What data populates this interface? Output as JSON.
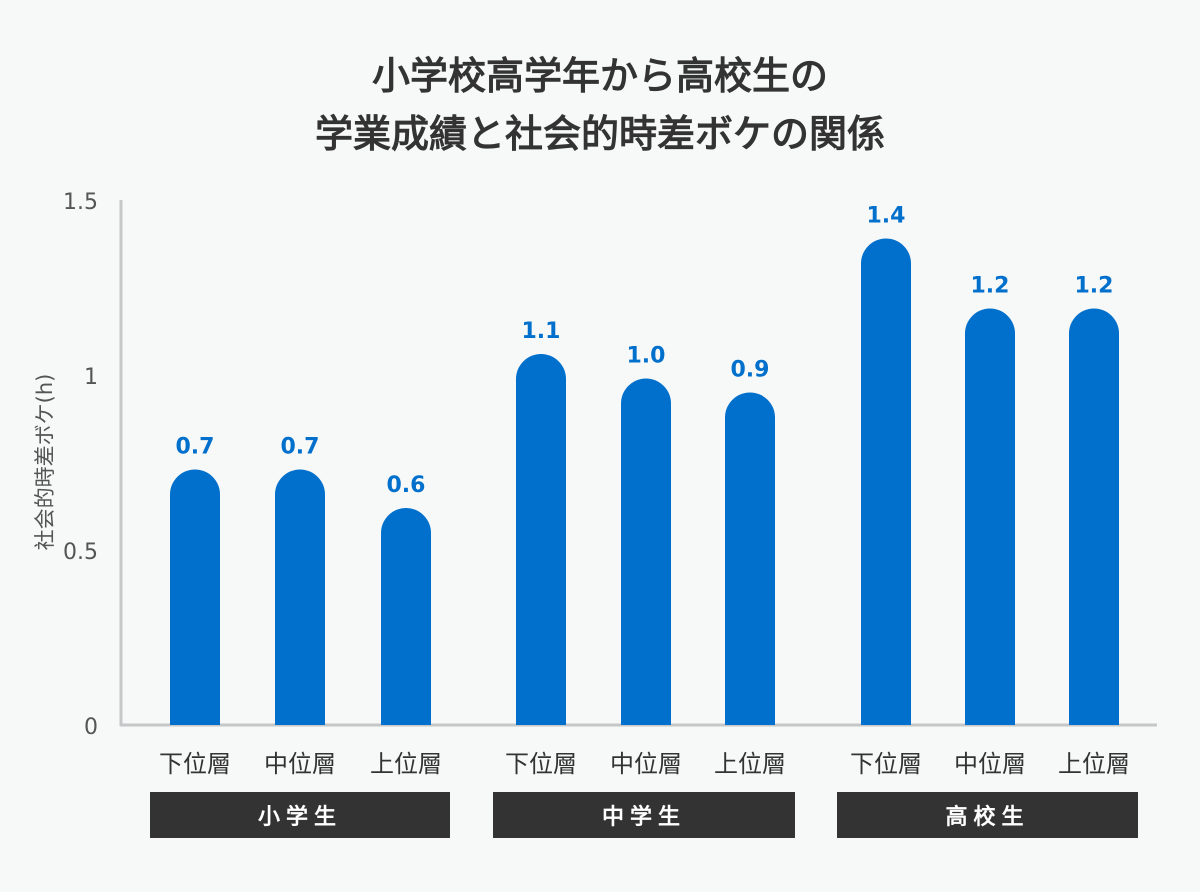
{
  "chart_data": {
    "type": "bar",
    "title_lines": [
      "小学校高学年から高校生の",
      "学業成績と社会的時差ボケの関係"
    ],
    "ylabel": "社会的時差ボケ(h)",
    "xlabel": "",
    "ylim": [
      0,
      1.5
    ],
    "yticks": [
      0,
      0.5,
      1,
      1.5
    ],
    "ytick_labels": [
      "0",
      "0.5",
      "1",
      "1.5"
    ],
    "grid": false,
    "groups": [
      {
        "name": "小学生",
        "categories": [
          "下位層",
          "中位層",
          "上位層"
        ],
        "values": [
          0.73,
          0.73,
          0.62
        ],
        "labels": [
          "0.7",
          "0.7",
          "0.6"
        ]
      },
      {
        "name": "中学生",
        "categories": [
          "下位層",
          "中位層",
          "上位層"
        ],
        "values": [
          1.06,
          0.99,
          0.95
        ],
        "labels": [
          "1.1",
          "1.0",
          "0.9"
        ]
      },
      {
        "name": "高校生",
        "categories": [
          "下位層",
          "中位層",
          "上位層"
        ],
        "values": [
          1.39,
          1.19,
          1.19
        ],
        "labels": [
          "1.4",
          "1.2",
          "1.2"
        ]
      }
    ],
    "colors": {
      "bar": "#0070cc",
      "label": "#0070cc",
      "axis": "#c5c7c9",
      "group_bg": "#333333"
    }
  }
}
